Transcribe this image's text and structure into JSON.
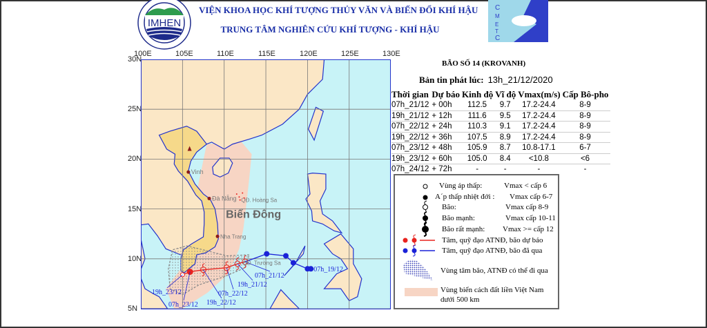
{
  "header": {
    "institute": "VIỆN KHOA HỌC KHÍ TƯỢNG THỦY VĂN VÀ BIẾN ĐỔI KHÍ HẬU",
    "center": "TRUNG TÂM NGHIÊN CỨU KHÍ TƯỢNG - KHÍ HẬU",
    "logo_left_text": "IMHEN",
    "logo_left_ring": "KHÍ TƯỢNG THỦY VĂN VÀ BIẾN ĐỔI KHÍ HẬU",
    "logo_right_text": "CMETC"
  },
  "map": {
    "lon_ticks": [
      "100E",
      "105E",
      "110E",
      "115E",
      "120E",
      "125E",
      "130E"
    ],
    "lat_ticks": [
      "30N",
      "25N",
      "20N",
      "15N",
      "10N",
      "5N"
    ],
    "lon_range": [
      100,
      130
    ],
    "lat_range": [
      5,
      30
    ],
    "place_labels": {
      "sea": "Biển Đông",
      "vinh": "Vinh",
      "danang": "Đà Nẵng",
      "hoangsa": "QĐ. Hoàng Sa",
      "nhatrang": "Nha Trang",
      "truongsa": "QĐ. Trường Sa"
    },
    "colors": {
      "sea": "#c8f3f7",
      "land": "#fbe7c6",
      "vietnam": "#f6d98a",
      "near_zone": "#f7d5c4",
      "forecast": "#e8231f",
      "past": "#1a22d8",
      "border": "#2233cc"
    },
    "past_track": [
      [
        120.4,
        9.0
      ],
      [
        120.0,
        9.0
      ],
      [
        118.3,
        9.6
      ],
      [
        117.4,
        10.3
      ],
      [
        115.1,
        10.5
      ]
    ],
    "past_label": "07h_19/12",
    "forecast_labels": [
      "07h_21/12",
      "19h_21/12",
      "07h_22/12",
      "19h_22/12",
      "07h_23/12",
      "19h_23/12"
    ]
  },
  "bulletin": {
    "storm": "BÃO SỐ 14 (KROVANH)",
    "issued_label": "Bản tin phát lúc:",
    "issued_value": "13h_21/12/2020",
    "columns": [
      "Thời gian",
      "Dự báo",
      "Kinh độ",
      "Vĩ độ",
      "Vmax(m/s)",
      "Cấp Bô-pho"
    ],
    "rows": [
      [
        "07h_21/12",
        "+ 00h",
        "112.5",
        "9.7",
        "17.2-24.4",
        "8-9"
      ],
      [
        "19h_21/12",
        "+ 12h",
        "111.6",
        "9.5",
        "17.2-24.4",
        "8-9"
      ],
      [
        "07h_22/12",
        "+ 24h",
        "110.3",
        "9.1",
        "17.2-24.4",
        "8-9"
      ],
      [
        "19h_22/12",
        "+ 36h",
        "107.5",
        "8.9",
        "17.2-24.4",
        "8-9"
      ],
      [
        "07h_23/12",
        "+ 48h",
        "105.9",
        "8.7",
        "10.8-17.1",
        "6-7"
      ],
      [
        "19h_23/12",
        "+ 60h",
        "105.0",
        "8.4",
        "<10.8",
        "<6"
      ],
      [
        "07h_24/12",
        "+ 72h",
        "-",
        "-",
        "-",
        "-"
      ]
    ]
  },
  "legend": {
    "low": {
      "name": "Vùng áp thấp:",
      "v": "Vmax < cấp 6"
    },
    "td": {
      "name": "A´p thấp nhiệt đới :",
      "v": "Vmax cấp 6-7"
    },
    "ts": {
      "name": "Bão:",
      "v": "Vmax cấp 8-9"
    },
    "sts": {
      "name": "Bão mạnh:",
      "v": "Vmax cấp 10-11"
    },
    "ty": {
      "name": "Bão rất mạnh:",
      "v": "Vmax >= cấp 12"
    },
    "fc_track": "Tâm, quỹ đạo ATNĐ, bão dự báo",
    "past_track": "Tâm, quỹ đạo ATNĐ, bão đã qua",
    "cone": "Vùng tâm bão, ATNĐ có thể đi qua",
    "zone": "Vùng biển cách đất liền Việt Nam",
    "zone2": "dưới 500 km"
  }
}
